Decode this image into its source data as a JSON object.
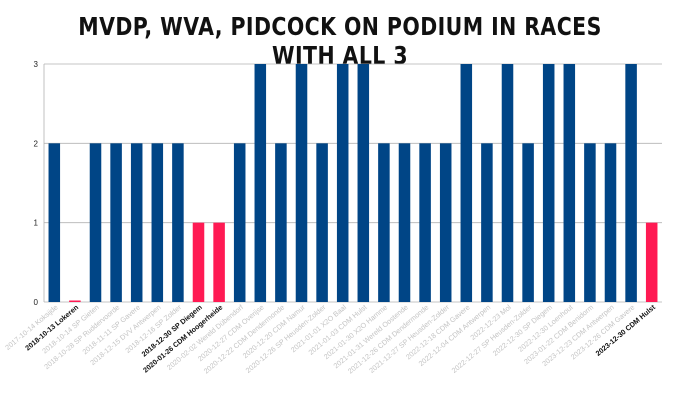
{
  "chart_data": {
    "type": "bar",
    "title": "MVDP, WVA, PIDCOCK ON PODIUM IN RACES WITH ALL 3",
    "xlabel": "",
    "ylabel": "",
    "ylim": [
      0,
      3
    ],
    "yticks": [
      0,
      1,
      2,
      3
    ],
    "grid": true,
    "legend": "none",
    "colors": {
      "default": "#004586",
      "highlight": "#ff1a53",
      "grid": "#b3b3b3",
      "highlight_label": "#111111",
      "label": "#c4c4c4"
    },
    "categories": [
      "2017-10-14 Koksijde",
      "2018-10-13 Lokeren",
      "2018-10-14 SP Gieten",
      "2018-10-28 SP Ruddervoorde",
      "2018-11-11 SP Gavere",
      "2018-12-15 DVV Antwerpen",
      "2018-12-16 SP Zolder",
      "2018-12-30 SP Diegem",
      "2020-01-26 CDM Hoogerheide",
      "2020-02-02 Wereld Dübendorf",
      "2020-12-27 CDM Overijse",
      "2020-12-22 CDM Dendermonde",
      "2020-12-20 CDM Namur",
      "2020-12-26 SP Heusden-Zolder",
      "2021-01-01 X2O Baal",
      "2021-01-03 CDM Hulst",
      "2021-01-30 X2O Hamme",
      "2021-01-31 Wereld Oostende",
      "2021-12-26 CDM Dendermonde",
      "2021-12-27 SP Heusden-Zolder",
      "2022-12-18 CDM Gavere",
      "2022-12-04 CDM Antwerpen",
      "2022-12-23 Mol",
      "2022-12-27 SP Heusden-Zolder",
      "2022-12-30 SP Diegem",
      "2022-12-30 Loenhout",
      "2023-01-22 CDM Benidorm",
      "2023-12-23 CDM Antwerpen",
      "2023-12-26 CDM Gavere",
      "2023-12-30 CDM Hulst"
    ],
    "values": [
      2,
      0,
      2,
      2,
      2,
      2,
      2,
      1,
      1,
      2,
      3,
      2,
      3,
      2,
      3,
      3,
      2,
      2,
      2,
      2,
      3,
      2,
      3,
      2,
      3,
      3,
      2,
      2,
      3,
      1
    ],
    "highlight": [
      false,
      true,
      false,
      false,
      false,
      false,
      false,
      true,
      true,
      false,
      false,
      false,
      false,
      false,
      false,
      false,
      false,
      false,
      false,
      false,
      false,
      false,
      false,
      false,
      false,
      false,
      false,
      false,
      false,
      true
    ]
  }
}
